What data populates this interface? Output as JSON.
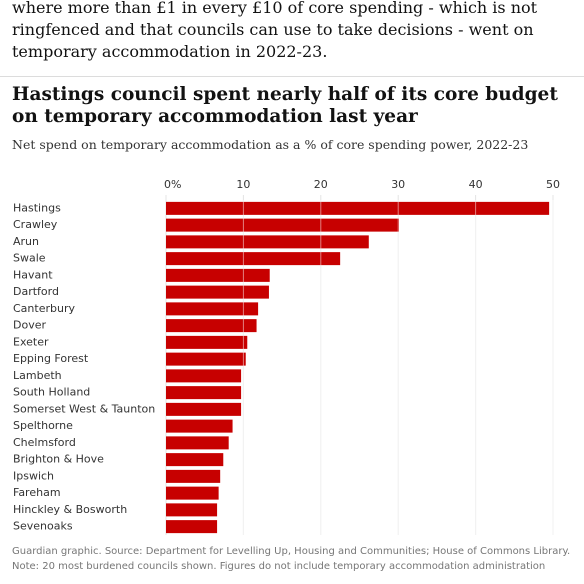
{
  "article_text": "where more than £1 in every £10 of core spending - which is not ringfenced and that councils can use to take decisions - went on temporary accommodation in 2022-23.",
  "chart_data": {
    "type": "bar",
    "orientation": "horizontal",
    "title": "Hastings council spent nearly half of its core budget on temporary accommodation last year",
    "subtitle": "Net spend on temporary accommodation as a % of core spending power, 2022-23",
    "categories": [
      "Hastings",
      "Crawley",
      "Arun",
      "Swale",
      "Havant",
      "Dartford",
      "Canterbury",
      "Dover",
      "Exeter",
      "Epping Forest",
      "Lambeth",
      "South Holland",
      "Somerset West & Taunton",
      "Spelthorne",
      "Chelmsford",
      "Brighton & Hove",
      "Ipswich",
      "Fareham",
      "Hinckley & Bosworth",
      "Sevenoaks"
    ],
    "values": [
      49.5,
      30.1,
      26.2,
      22.5,
      13.4,
      13.3,
      11.9,
      11.7,
      10.5,
      10.3,
      9.7,
      9.7,
      9.7,
      8.6,
      8.1,
      7.4,
      7.0,
      6.8,
      6.6,
      6.6
    ],
    "color": "#c70000",
    "xlim": [
      0,
      50
    ],
    "xticks": [
      {
        "value": 0,
        "label": "0%"
      },
      10,
      20,
      30,
      40,
      50
    ],
    "grid": true,
    "source": "Guardian graphic. Source: Department for Levelling Up, Housing and Communities; House of Commons Library.",
    "note": "Note: 20 most burdened councils shown. Figures do not include temporary accommodation administration"
  }
}
